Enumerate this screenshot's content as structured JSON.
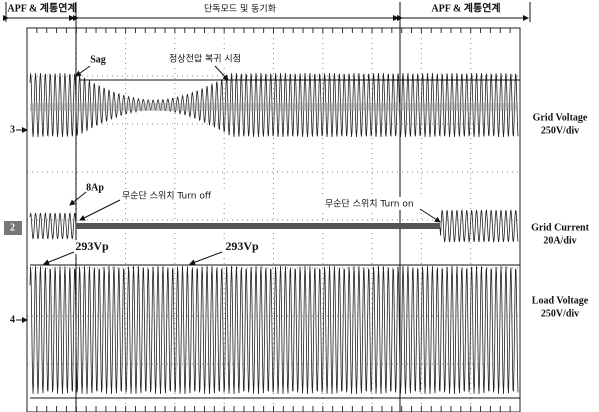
{
  "header": {
    "segments": [
      "APF & 계통연계",
      "단독모드 및 동기화",
      "APF & 계통연계"
    ]
  },
  "channels": [
    {
      "marker": "3",
      "label": "Grid Voltage",
      "scale": "250V/div"
    },
    {
      "marker": "2",
      "label": "Grid Current",
      "scale": "20A/div"
    },
    {
      "marker": "4",
      "label": "Load Voltage",
      "scale": "250V/div"
    }
  ],
  "annotations": [
    "Sag",
    "정상전압 복귀 시점",
    "8Ap",
    "무순단 스위치 Turn off",
    "무순단 스위치 Turn on",
    "293Vp",
    "293Vp"
  ]
}
